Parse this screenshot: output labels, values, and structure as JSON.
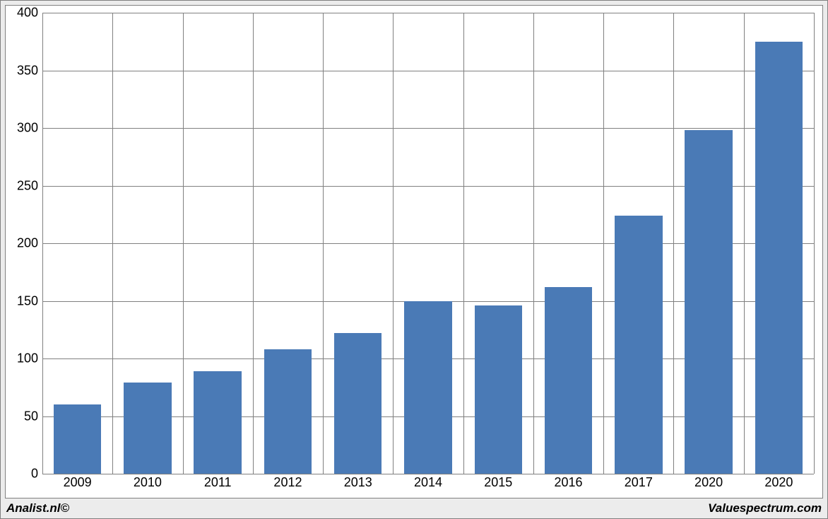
{
  "chart": {
    "type": "bar",
    "background_color": "#ffffff",
    "frame_background": "#ececec",
    "border_color": "#808080",
    "grid_color": "#808080",
    "bar_color": "#4a7ab6",
    "ylim": [
      0,
      400
    ],
    "ytick_step": 50,
    "yticks": [
      0,
      50,
      100,
      150,
      200,
      250,
      300,
      350,
      400
    ],
    "categories": [
      "2009",
      "2010",
      "2011",
      "2012",
      "2013",
      "2014",
      "2015",
      "2016",
      "2017",
      "2020",
      "2020"
    ],
    "values": [
      60,
      79,
      89,
      108,
      122,
      150,
      146,
      162,
      224,
      298,
      375
    ],
    "bar_width_ratio": 0.68,
    "tick_fontsize": 18,
    "tick_color": "#000000"
  },
  "footer": {
    "left": "Analist.nl©",
    "right": "Valuespectrum.com"
  }
}
